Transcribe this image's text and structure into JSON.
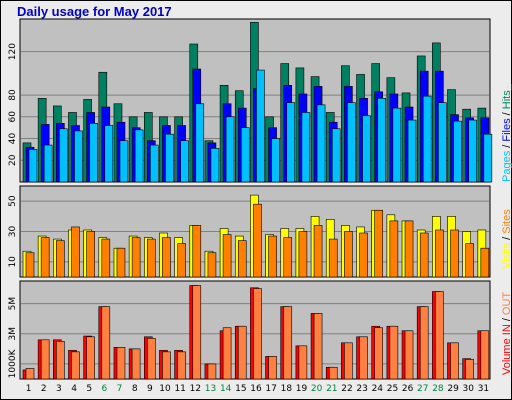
{
  "title": "Daily usage for May 2017",
  "colors": {
    "pages": "#00c0ff",
    "files": "#0000ff",
    "hits": "#008060",
    "visits": "#ffff00",
    "sites": "#ff8000",
    "kbytes_in": "#ff0000",
    "kbytes_out": "#ff8040",
    "weekend_label": "#008040",
    "panel_bg": "#c0c0c0"
  },
  "legend": {
    "top": [
      {
        "text": "Pages",
        "color": "#00c0ff"
      },
      {
        "text": " / ",
        "color": "#000000"
      },
      {
        "text": "Files",
        "color": "#0000ff"
      },
      {
        "text": " / ",
        "color": "#000000"
      },
      {
        "text": "Hits",
        "color": "#008060"
      },
      {
        "text": "_",
        "color": "#008060"
      }
    ],
    "middle": [
      {
        "text": "Visits",
        "color": "#ffff00"
      },
      {
        "text": " / ",
        "color": "#000000"
      },
      {
        "text": "Sites",
        "color": "#ff8000"
      }
    ],
    "bottom": [
      {
        "text": "Volume",
        "color": "#ff0000"
      },
      {
        "text": "  IN",
        "color": "#ff0000"
      },
      {
        "text": " / ",
        "color": "#000000"
      },
      {
        "text": "OUT",
        "color": "#ff8040"
      }
    ]
  },
  "chart_data": {
    "type": "bar",
    "days": [
      "1",
      "2",
      "3",
      "4",
      "5",
      "6",
      "7",
      "8",
      "9",
      "10",
      "11",
      "12",
      "13",
      "14",
      "15",
      "16",
      "17",
      "18",
      "19",
      "20",
      "21",
      "22",
      "23",
      "24",
      "25",
      "26",
      "27",
      "28",
      "29",
      "30",
      "31"
    ],
    "weekend_days": [
      "6",
      "7",
      "13",
      "14",
      "20",
      "21",
      "27",
      "28"
    ],
    "panels": [
      {
        "name": "hits",
        "ylim": [
          0,
          150
        ],
        "yticks": [
          {
            "value": 20,
            "label": "20"
          },
          {
            "value": 40,
            "label": "40"
          },
          {
            "value": 60,
            "label": "60"
          },
          {
            "value": 80,
            "label": "80"
          },
          {
            "value": 120,
            "label": "120"
          }
        ],
        "series": [
          {
            "key": "hits",
            "values": [
              36,
              77,
              70,
              64,
              76,
              101,
              72,
              60,
              64,
              60,
              60,
              127,
              38,
              89,
              84,
              147,
              60,
              109,
              105,
              97,
              64,
              107,
              99,
              109,
              96,
              82,
              116,
              128,
              85,
              67,
              68
            ]
          },
          {
            "key": "files",
            "values": [
              32,
              53,
              54,
              52,
              64,
              69,
              55,
              50,
              38,
              52,
              52,
              104,
              36,
              72,
              68,
              86,
              50,
              89,
              81,
              88,
              55,
              88,
              77,
              83,
              81,
              69,
              102,
              102,
              62,
              59,
              59
            ]
          },
          {
            "key": "pages",
            "values": [
              30,
              34,
              49,
              47,
              54,
              52,
              38,
              48,
              34,
              44,
              38,
              72,
              31,
              60,
              50,
              103,
              40,
              73,
              64,
              71,
              49,
              73,
              61,
              77,
              68,
              57,
              79,
              73,
              56,
              57,
              44
            ]
          }
        ]
      },
      {
        "name": "visits",
        "ylim": [
          0,
          60
        ],
        "yticks": [
          {
            "value": 10,
            "label": "10"
          },
          {
            "value": 30,
            "label": "30"
          },
          {
            "value": 50,
            "label": "50"
          }
        ],
        "series": [
          {
            "key": "visits",
            "values": [
              17,
              27,
              25,
              31,
              31,
              26,
              19,
              27,
              26,
              29,
              26,
              34,
              17,
              32,
              27,
              54,
              28,
              32,
              32,
              40,
              38,
              34,
              33,
              44,
              41,
              37,
              31,
              40,
              40,
              30,
              31
            ]
          },
          {
            "key": "sites",
            "values": [
              16,
              26,
              24,
              33,
              30,
              25,
              19,
              26,
              25,
              26,
              22,
              34,
              16,
              28,
              24,
              48,
              27,
              26,
              30,
              34,
              25,
              30,
              29,
              44,
              37,
              37,
              29,
              31,
              31,
              22,
              19
            ]
          }
        ]
      },
      {
        "name": "volume",
        "ylim": [
          0,
          6500
        ],
        "yticks": [
          {
            "value": 1000,
            "label": "1000K"
          },
          {
            "value": 3000,
            "label": "3M"
          },
          {
            "value": 5000,
            "label": "5M"
          }
        ],
        "series": [
          {
            "key": "kbytes_in",
            "values": [
              600,
              2600,
              2600,
              1900,
              2850,
              4800,
              2100,
              2000,
              2800,
              1900,
              1900,
              6200,
              1000,
              3200,
              3500,
              6050,
              1500,
              4800,
              2200,
              4350,
              780,
              2400,
              2800,
              3500,
              3500,
              3200,
              4800,
              5800,
              2400,
              1350,
              3200
            ]
          },
          {
            "key": "kbytes_out",
            "values": [
              700,
              2600,
              2500,
              1800,
              2800,
              4800,
              2100,
              2000,
              2700,
              1800,
              1800,
              6200,
              1000,
              3400,
              3500,
              6000,
              1500,
              4800,
              2200,
              4350,
              780,
              2400,
              2800,
              3400,
              3500,
              3200,
              4800,
              5800,
              2400,
              1300,
              3200
            ]
          }
        ]
      }
    ]
  }
}
